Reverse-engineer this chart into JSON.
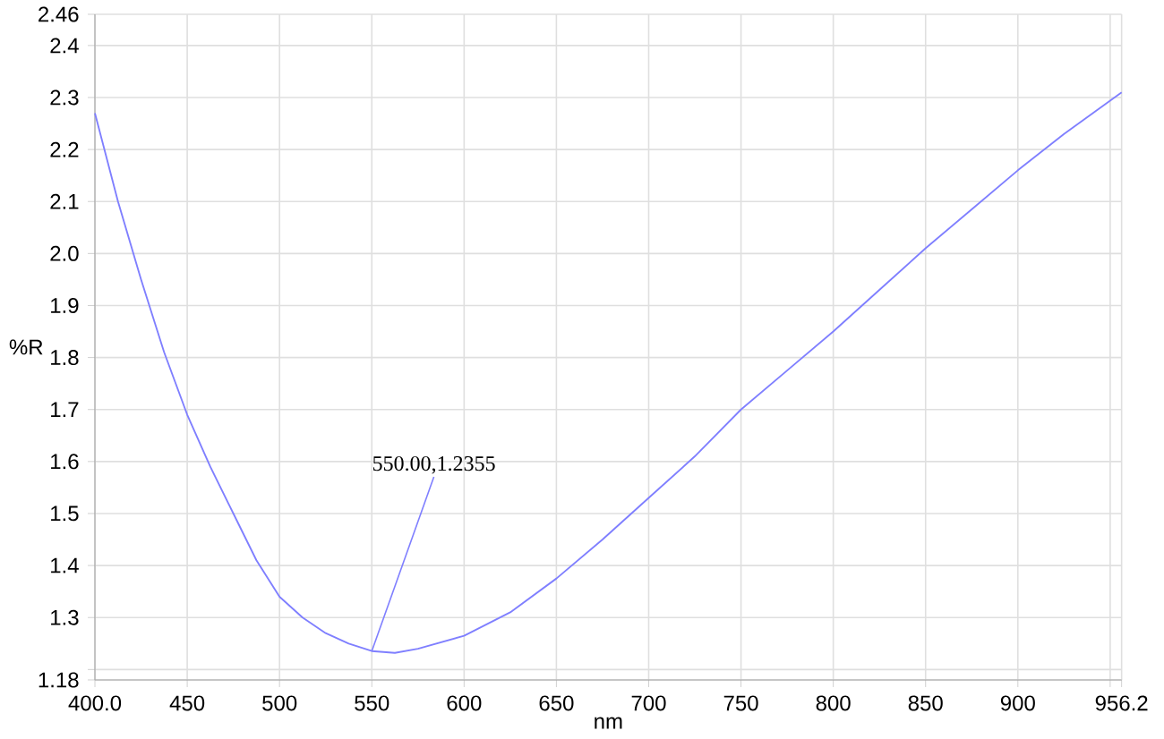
{
  "chart_data": {
    "type": "line",
    "xlabel": "nm",
    "ylabel": "%R",
    "color": "#7f7fff",
    "x": [
      400,
      412.5,
      425,
      437.5,
      450,
      462.5,
      475,
      487.5,
      500,
      512.5,
      525,
      537.5,
      550,
      562.5,
      575,
      600,
      625,
      650,
      675,
      700,
      725,
      750,
      775,
      800,
      825,
      850,
      875,
      900,
      925,
      956.2
    ],
    "values": [
      2.27,
      2.1,
      1.95,
      1.81,
      1.69,
      1.59,
      1.5,
      1.41,
      1.34,
      1.3,
      1.27,
      1.25,
      1.2355,
      1.232,
      1.24,
      1.265,
      1.31,
      1.375,
      1.45,
      1.53,
      1.61,
      1.7,
      1.775,
      1.85,
      1.93,
      2.01,
      2.085,
      2.16,
      2.23,
      2.31
    ],
    "xlim": [
      400,
      956.2
    ],
    "ylim": [
      1.18,
      2.46
    ],
    "xticks": [
      {
        "value": 400,
        "label": "400.0"
      },
      450,
      500,
      550,
      600,
      650,
      700,
      750,
      800,
      850,
      900,
      {
        "value": 950,
        "label": null
      },
      956.2
    ],
    "yticks": [
      1.18,
      {
        "value": 1.2,
        "label": null
      },
      1.3,
      1.4,
      1.5,
      1.6,
      1.7,
      1.8,
      1.9,
      {
        "value": 2.0,
        "label": "2.0"
      },
      2.1,
      2.2,
      2.3,
      2.4,
      2.46
    ],
    "grid": true,
    "marker": "none",
    "line_style": "solid",
    "annotations": [
      {
        "text": "550.00,1.2355",
        "x": 550,
        "y": 1.2355
      }
    ]
  }
}
